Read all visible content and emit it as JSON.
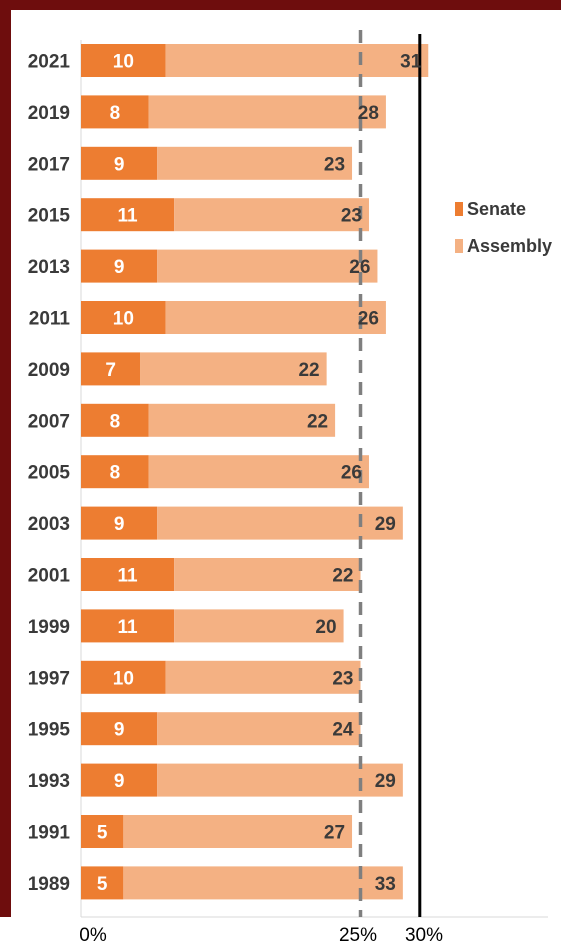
{
  "colors": {
    "senate": "#ed7d31",
    "assembly": "#f4b183",
    "frame": "#6e0d0d",
    "ref25": "#7f7f7f",
    "ref30": "#000000"
  },
  "chart_data": {
    "type": "bar",
    "orientation": "horizontal",
    "stacked": true,
    "categories": [
      "2021",
      "2019",
      "2017",
      "2015",
      "2013",
      "2011",
      "2009",
      "2007",
      "2005",
      "2003",
      "2001",
      "1999",
      "1997",
      "1995",
      "1993",
      "1991",
      "1989"
    ],
    "series": [
      {
        "name": "Senate",
        "values": [
          10,
          8,
          9,
          11,
          9,
          10,
          7,
          8,
          8,
          9,
          11,
          11,
          10,
          9,
          9,
          5,
          5
        ]
      },
      {
        "name": "Assembly",
        "values": [
          31,
          28,
          23,
          23,
          26,
          26,
          22,
          22,
          26,
          29,
          22,
          20,
          23,
          24,
          29,
          27,
          33
        ]
      }
    ],
    "value_axis_labels": [
      "0%",
      "25%",
      "30%"
    ],
    "reference_lines": [
      {
        "value": 33,
        "style": "dashed",
        "label": "25%"
      },
      {
        "value": 40,
        "style": "solid",
        "label": "30%"
      }
    ],
    "legend": {
      "position": "right",
      "entries": [
        "Senate",
        "Assembly"
      ]
    },
    "grid": false
  }
}
